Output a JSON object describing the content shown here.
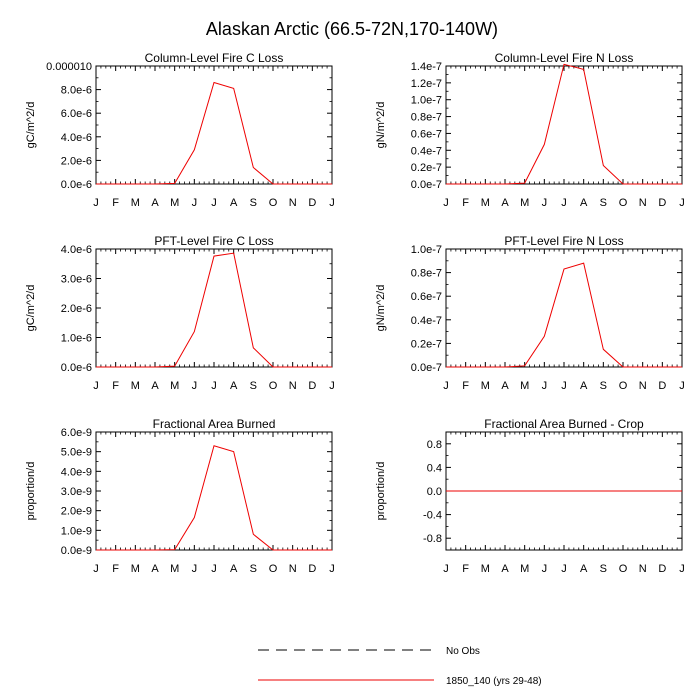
{
  "figure": {
    "title": "Alaskan Arctic (66.5-72N,170-140W)",
    "series_color": "#ee0000",
    "legend": [
      {
        "label": "No Obs",
        "style": "dashed",
        "color": "#000000"
      },
      {
        "label": "1850_140 (yrs 29-48)",
        "style": "solid",
        "color": "#ee0000"
      }
    ]
  },
  "chart_data": [
    {
      "type": "line",
      "title": "Column-Level Fire C Loss",
      "ylabel": "gC/m^2/d",
      "categories": [
        "J",
        "F",
        "M",
        "A",
        "M",
        "J",
        "J",
        "A",
        "S",
        "O",
        "N",
        "D",
        "J"
      ],
      "x": [
        0,
        1,
        2,
        3,
        4,
        5,
        6,
        7,
        8,
        9,
        10,
        11,
        12
      ],
      "series": [
        {
          "values": [
            0,
            0,
            0,
            0,
            5e-08,
            2.9e-06,
            8.6e-06,
            8.1e-06,
            1.4e-06,
            0,
            0,
            0,
            0
          ]
        }
      ],
      "ylim": [
        0,
        1e-05
      ],
      "yticks": [
        0,
        2e-06,
        4e-06,
        6e-06,
        8e-06,
        1e-05
      ],
      "ytick_labels": [
        "0.0e-6",
        "2.0e-6",
        "4.0e-6",
        "6.0e-6",
        "8.0e-6",
        "0.000010"
      ]
    },
    {
      "type": "line",
      "title": "Column-Level Fire N Loss",
      "ylabel": "gN/m^2/d",
      "categories": [
        "J",
        "F",
        "M",
        "A",
        "M",
        "J",
        "J",
        "A",
        "S",
        "O",
        "N",
        "D",
        "J"
      ],
      "x": [
        0,
        1,
        2,
        3,
        4,
        5,
        6,
        7,
        8,
        9,
        10,
        11,
        12
      ],
      "series": [
        {
          "values": [
            0,
            0,
            0,
            0,
            1e-09,
            4.7e-08,
            1.42e-07,
            1.36e-07,
            2.2e-08,
            0,
            0,
            0,
            0
          ]
        }
      ],
      "ylim": [
        0,
        1.4e-07
      ],
      "yticks": [
        0,
        2e-08,
        4e-08,
        6e-08,
        8e-08,
        1e-07,
        1.2e-07,
        1.4e-07
      ],
      "ytick_labels": [
        "0.0e-7",
        "0.2e-7",
        "0.4e-7",
        "0.6e-7",
        "0.8e-7",
        "1.0e-7",
        "1.2e-7",
        "1.4e-7"
      ]
    },
    {
      "type": "line",
      "title": "PFT-Level Fire C Loss",
      "ylabel": "gC/m^2/d",
      "categories": [
        "J",
        "F",
        "M",
        "A",
        "M",
        "J",
        "J",
        "A",
        "S",
        "O",
        "N",
        "D",
        "J"
      ],
      "x": [
        0,
        1,
        2,
        3,
        4,
        5,
        6,
        7,
        8,
        9,
        10,
        11,
        12
      ],
      "series": [
        {
          "values": [
            0,
            0,
            0,
            0,
            3e-08,
            1.2e-06,
            3.76e-06,
            3.86e-06,
            6.5e-07,
            0,
            0,
            0,
            0
          ]
        }
      ],
      "ylim": [
        0,
        4e-06
      ],
      "yticks": [
        0,
        1e-06,
        2e-06,
        3e-06,
        4e-06
      ],
      "ytick_labels": [
        "0.0e-6",
        "1.0e-6",
        "2.0e-6",
        "3.0e-6",
        "4.0e-6"
      ]
    },
    {
      "type": "line",
      "title": "PFT-Level Fire N Loss",
      "ylabel": "gN/m^2/d",
      "categories": [
        "J",
        "F",
        "M",
        "A",
        "M",
        "J",
        "J",
        "A",
        "S",
        "O",
        "N",
        "D",
        "J"
      ],
      "x": [
        0,
        1,
        2,
        3,
        4,
        5,
        6,
        7,
        8,
        9,
        10,
        11,
        12
      ],
      "series": [
        {
          "values": [
            0,
            0,
            0,
            0,
            1e-09,
            2.6e-08,
            8.3e-08,
            8.8e-08,
            1.5e-08,
            0,
            0,
            0,
            0
          ]
        }
      ],
      "ylim": [
        0,
        1e-07
      ],
      "yticks": [
        0,
        2e-08,
        4e-08,
        6e-08,
        8e-08,
        1e-07
      ],
      "ytick_labels": [
        "0.0e-7",
        "0.2e-7",
        "0.4e-7",
        "0.6e-7",
        "0.8e-7",
        "1.0e-7"
      ]
    },
    {
      "type": "line",
      "title": "Fractional Area Burned",
      "ylabel": "proportion/d",
      "categories": [
        "J",
        "F",
        "M",
        "A",
        "M",
        "J",
        "J",
        "A",
        "S",
        "O",
        "N",
        "D",
        "J"
      ],
      "x": [
        0,
        1,
        2,
        3,
        4,
        5,
        6,
        7,
        8,
        9,
        10,
        11,
        12
      ],
      "series": [
        {
          "values": [
            0,
            0,
            0,
            0,
            2e-11,
            1.65e-09,
            5.3e-09,
            5e-09,
            8e-10,
            0,
            0,
            0,
            0
          ]
        }
      ],
      "ylim": [
        0,
        6e-09
      ],
      "yticks": [
        0,
        1e-09,
        2e-09,
        3e-09,
        4e-09,
        5e-09,
        6e-09
      ],
      "ytick_labels": [
        "0.0e-9",
        "1.0e-9",
        "2.0e-9",
        "3.0e-9",
        "4.0e-9",
        "5.0e-9",
        "6.0e-9"
      ]
    },
    {
      "type": "line",
      "title": "Fractional Area Burned - Crop",
      "ylabel": "proportion/d",
      "categories": [
        "J",
        "F",
        "M",
        "A",
        "M",
        "J",
        "J",
        "A",
        "S",
        "O",
        "N",
        "D",
        "J"
      ],
      "x": [
        0,
        1,
        2,
        3,
        4,
        5,
        6,
        7,
        8,
        9,
        10,
        11,
        12
      ],
      "series": [
        {
          "values": [
            0,
            0,
            0,
            0,
            0,
            0,
            0,
            0,
            0,
            0,
            0,
            0,
            0
          ]
        }
      ],
      "ylim": [
        -1.0,
        1.0
      ],
      "yticks": [
        -0.8,
        -0.4,
        0.0,
        0.4,
        0.8
      ],
      "ytick_labels": [
        "-0.8",
        "-0.4",
        "0.0",
        "0.4",
        "0.8"
      ]
    }
  ]
}
